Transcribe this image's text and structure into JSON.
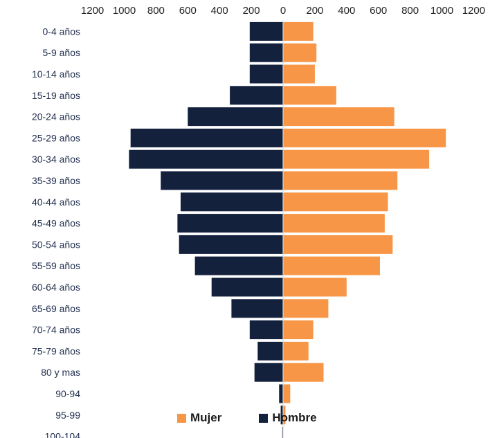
{
  "chart_data": {
    "type": "bar",
    "orientation": "horizontal-pyramid",
    "categories": [
      "0-4 años",
      "5-9 años",
      "10-14 años",
      "15-19 años",
      "20-24 años",
      "25-29 años",
      "30-34 años",
      "35-39 años",
      "40-44 años",
      "45-49 años",
      "50-54 años",
      "55-59 años",
      "60-64 años",
      "65-69 años",
      "70-74 años",
      "75-79 años",
      "80 y mas",
      "90-94",
      "95-99",
      "100-104"
    ],
    "series": [
      {
        "name": "Mujer",
        "side": "right",
        "color": "#f79646",
        "values": [
          190,
          210,
          200,
          335,
          700,
          1025,
          920,
          720,
          660,
          640,
          690,
          610,
          400,
          285,
          190,
          160,
          255,
          45,
          15,
          0
        ]
      },
      {
        "name": "Hombre",
        "side": "left",
        "color": "#13213d",
        "values": [
          210,
          210,
          210,
          335,
          600,
          960,
          970,
          770,
          645,
          665,
          655,
          555,
          450,
          325,
          210,
          160,
          180,
          25,
          15,
          5
        ]
      }
    ],
    "xticks": [
      "1200",
      "1000",
      "800",
      "600",
      "400",
      "200",
      "0",
      "200",
      "400",
      "600",
      "800",
      "1000",
      "1200"
    ],
    "xlim": [
      -1200,
      1200
    ],
    "legend_position": "bottom"
  }
}
